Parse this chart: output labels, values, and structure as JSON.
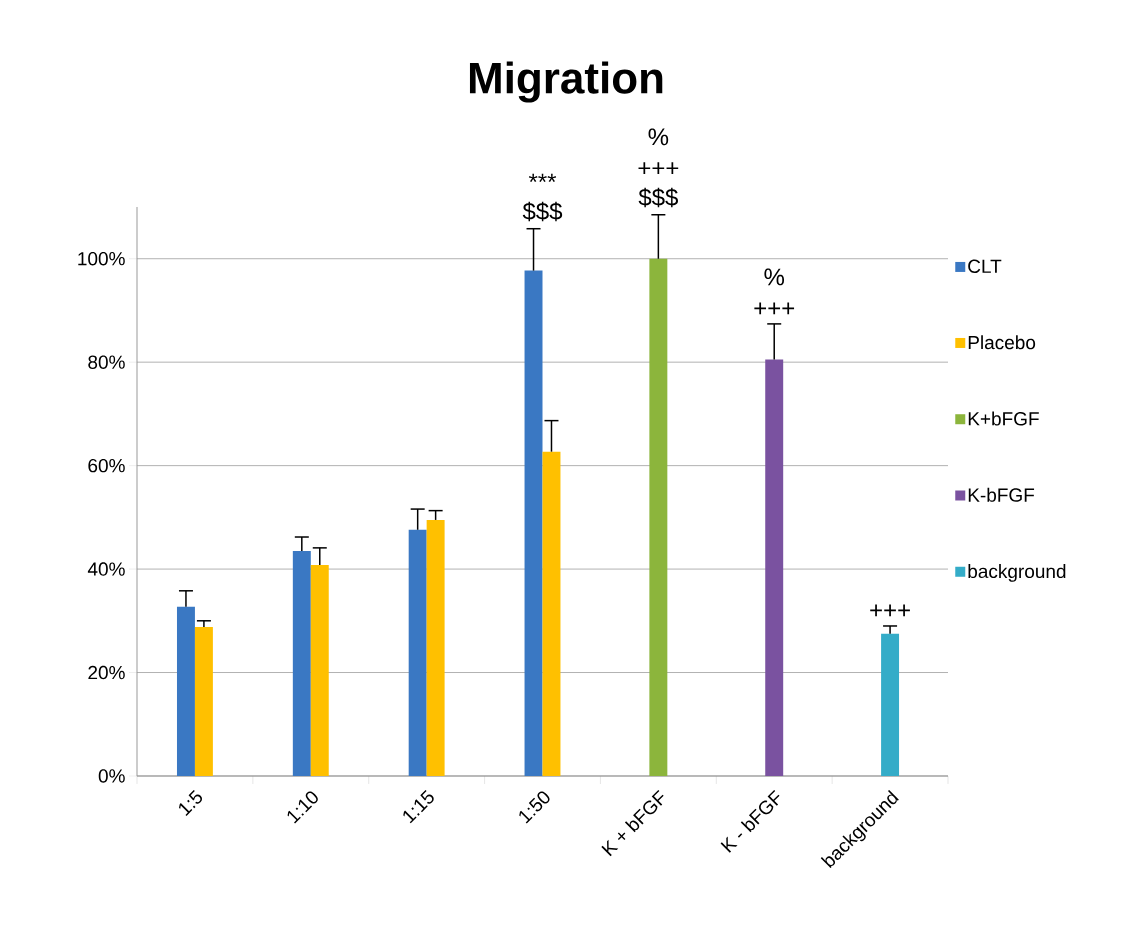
{
  "chart_data": {
    "type": "bar",
    "title": "Migration",
    "categories": [
      "1:5",
      "1:10",
      "1:15",
      "1:50",
      "K + bFGF",
      "K - bFGF",
      "background"
    ],
    "series": [
      {
        "name": "CLT",
        "color": "#3a78c3",
        "values": [
          32.7,
          43.5,
          47.6,
          97.7,
          null,
          null,
          null
        ],
        "errors": [
          [
            32.7,
            35.8
          ],
          [
            43.5,
            46.2
          ],
          [
            47.6,
            51.6
          ],
          [
            97.7,
            105.8
          ],
          null,
          null,
          null
        ]
      },
      {
        "name": "Placebo",
        "color": "#ffc000",
        "values": [
          28.8,
          40.8,
          49.5,
          62.7,
          null,
          null,
          null
        ],
        "errors": [
          [
            28.8,
            30.0
          ],
          [
            40.8,
            44.1
          ],
          [
            49.5,
            51.3
          ],
          [
            62.7,
            68.7
          ],
          null,
          null,
          null
        ]
      },
      {
        "name": "K+bFGF",
        "color": "#8cb53c",
        "values": [
          null,
          null,
          null,
          null,
          100,
          null,
          null
        ],
        "errors": [
          null,
          null,
          null,
          null,
          [
            100,
            108.5
          ],
          null,
          null
        ]
      },
      {
        "name": "K-bFGF",
        "color": "#7a52a0",
        "values": [
          null,
          null,
          null,
          null,
          null,
          80.5,
          null
        ],
        "errors": [
          null,
          null,
          null,
          null,
          null,
          [
            80.5,
            87.4
          ],
          null
        ]
      },
      {
        "name": "background",
        "color": "#34acc8",
        "values": [
          null,
          null,
          null,
          null,
          null,
          null,
          27.5
        ],
        "errors": [
          null,
          null,
          null,
          null,
          null,
          null,
          [
            27.5,
            29.0
          ]
        ]
      }
    ],
    "ylim": [
      0,
      110
    ],
    "yticks": [
      {
        "value": 0,
        "label": "0%"
      },
      {
        "value": 20,
        "label": "20%"
      },
      {
        "value": 40,
        "label": "40%"
      },
      {
        "value": 60,
        "label": "60%"
      },
      {
        "value": 80,
        "label": "80%"
      },
      {
        "value": 100,
        "label": "100%"
      }
    ],
    "grid": "y",
    "legend": "right",
    "annotations": [
      {
        "text": "***",
        "x": "1:50",
        "y": 105.8
      },
      {
        "text": "$$$",
        "x": "1:50",
        "y": 105.8
      },
      {
        "text": "%",
        "x": "K + bFGF",
        "y": 108.5
      },
      {
        "text": "+++",
        "x": "K + bFGF",
        "y": 108.5
      },
      {
        "text": "$$$",
        "x": "K + bFGF",
        "y": 108.5
      },
      {
        "text": "%",
        "x": "K - bFGF",
        "y": 87.4
      },
      {
        "text": "+++",
        "x": "K - bFGF",
        "y": 87.4
      },
      {
        "text": "+++",
        "x": "background",
        "y": 29.0
      }
    ]
  }
}
